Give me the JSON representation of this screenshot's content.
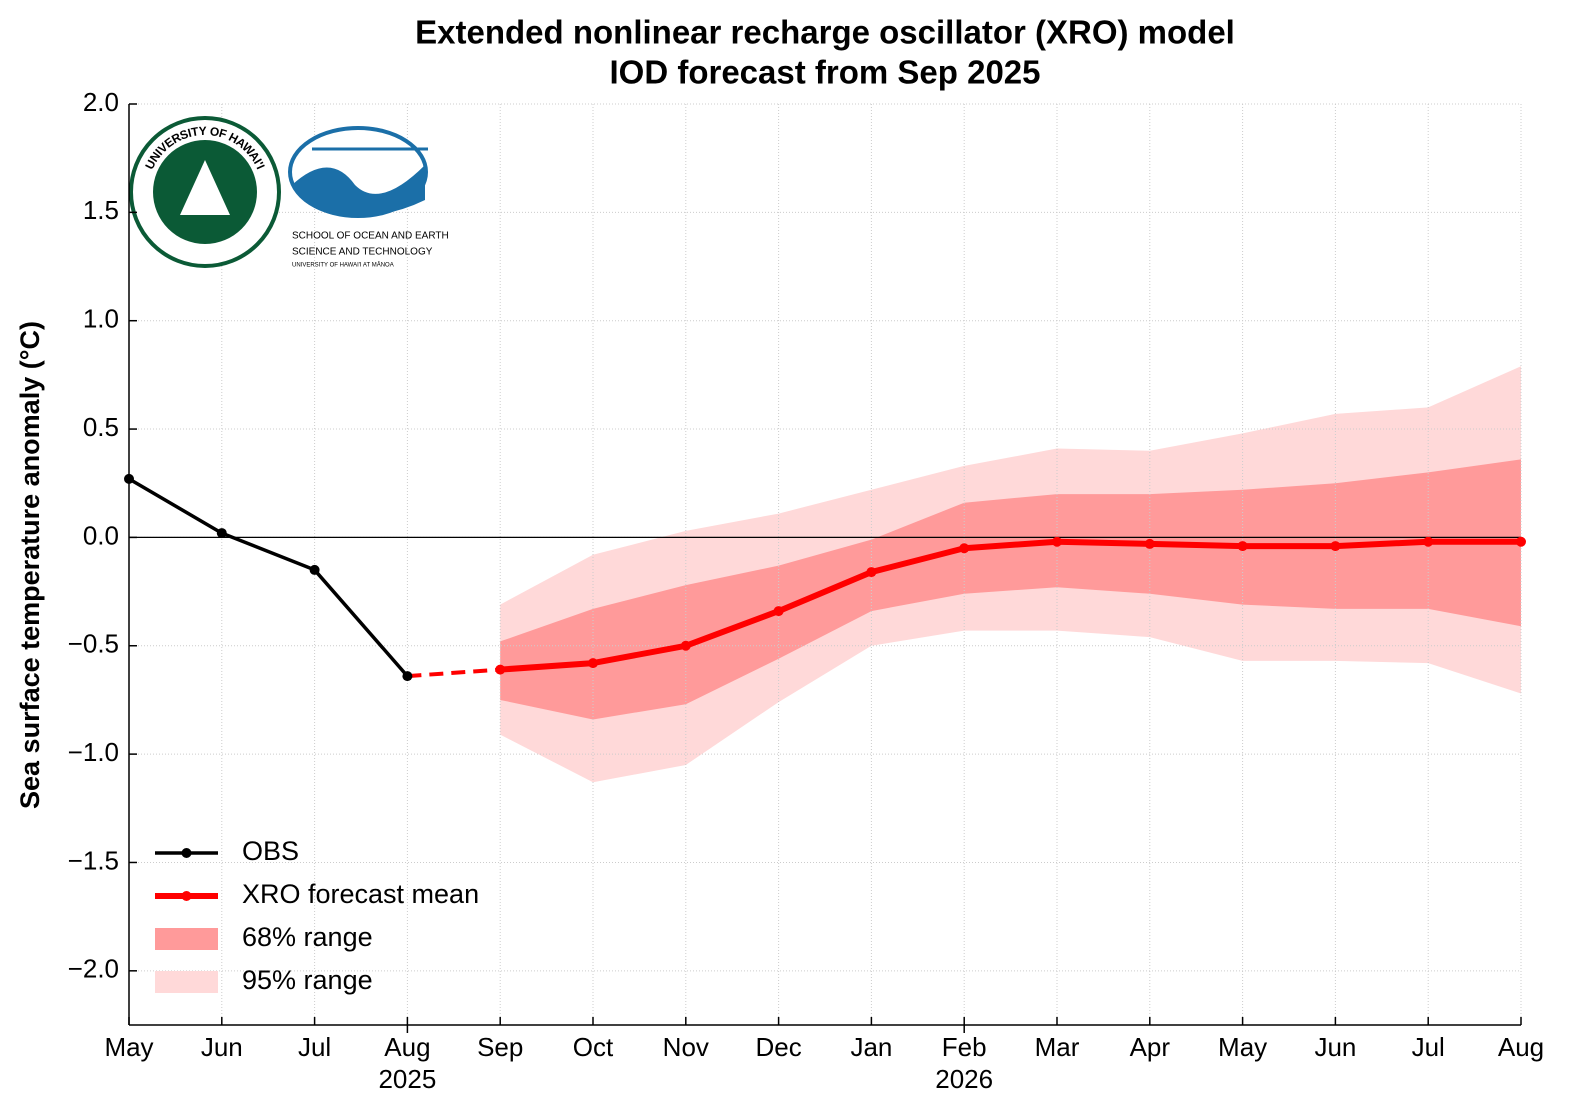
{
  "chart_data": {
    "type": "line",
    "title": "Extended nonlinear recharge oscillator (XRO) model",
    "subtitle": "IOD forecast from Sep 2025",
    "y_label": "Sea surface temperature anomaly (°C)",
    "categories": [
      "May",
      "Jun",
      "Jul",
      "Aug",
      "Sep",
      "Oct",
      "Nov",
      "Dec",
      "Jan",
      "Feb",
      "Mar",
      "Apr",
      "May",
      "Jun",
      "Jul",
      "Aug"
    ],
    "category_years": [
      null,
      null,
      null,
      "2025",
      null,
      null,
      null,
      null,
      null,
      "2026",
      null,
      null,
      null,
      null,
      null,
      null
    ],
    "ylim": [
      -2.25,
      2.0
    ],
    "yticks": [
      {
        "value": -2.0,
        "label": "−2.0"
      },
      {
        "value": -1.5,
        "label": "−1.5"
      },
      {
        "value": -1.0,
        "label": "−1.0"
      },
      {
        "value": -0.5,
        "label": "−0.5"
      },
      {
        "value": 0,
        "label": "0.0"
      },
      {
        "value": 0.5,
        "label": "0.5"
      },
      {
        "value": 1.0,
        "label": "1.0"
      },
      {
        "value": 1.5,
        "label": "1.5"
      },
      {
        "value": 2.0,
        "label": "2.0"
      }
    ],
    "grid": true,
    "legend": "lower left",
    "series": [
      {
        "name": "OBS",
        "color": "#000000",
        "values": [
          0.27,
          0.02,
          -0.15,
          -0.64,
          null,
          null,
          null,
          null,
          null,
          null,
          null,
          null,
          null,
          null,
          null,
          null
        ]
      },
      {
        "name": "XRO forecast mean",
        "color": "#ff0000",
        "values": [
          null,
          null,
          null,
          null,
          -0.61,
          -0.58,
          -0.5,
          -0.34,
          -0.16,
          -0.05,
          -0.02,
          -0.03,
          -0.04,
          -0.04,
          -0.02,
          -0.02
        ]
      }
    ],
    "bands": [
      {
        "name": "68% range",
        "color": "#ff9a9a",
        "lower": [
          null,
          null,
          null,
          null,
          -0.75,
          -0.84,
          -0.77,
          -0.56,
          -0.34,
          -0.26,
          -0.23,
          -0.26,
          -0.31,
          -0.33,
          -0.33,
          -0.41
        ],
        "upper": [
          null,
          null,
          null,
          null,
          -0.48,
          -0.33,
          -0.22,
          -0.13,
          -0.01,
          0.16,
          0.2,
          0.2,
          0.22,
          0.25,
          0.3,
          0.36
        ]
      },
      {
        "name": "95% range",
        "color": "#ffd9d9",
        "lower": [
          null,
          null,
          null,
          null,
          -0.91,
          -1.13,
          -1.05,
          -0.76,
          -0.5,
          -0.43,
          -0.43,
          -0.46,
          -0.57,
          -0.57,
          -0.58,
          -0.72
        ],
        "upper": [
          null,
          null,
          null,
          null,
          -0.31,
          -0.08,
          0.03,
          0.11,
          0.22,
          0.33,
          0.41,
          0.4,
          0.48,
          0.57,
          0.6,
          0.79
        ]
      }
    ],
    "logo_texts": [
      "UNIVERSITY OF HAWAI'I",
      "SCHOOL OF OCEAN AND EARTH",
      "SCIENCE AND TECHNOLOGY",
      "UNIVERSITY OF HAWAI'I AT MĀNOA"
    ]
  }
}
